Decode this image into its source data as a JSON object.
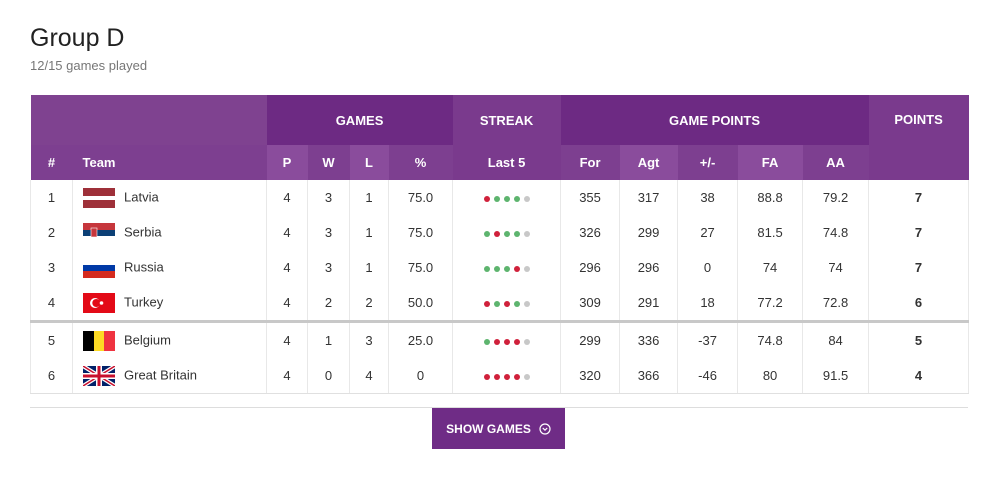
{
  "header": {
    "title": "Group D",
    "subtitle": "12/15 games played"
  },
  "table": {
    "group_headers": [
      "GAMES",
      "STREAK",
      "GAME POINTS",
      "POINTS"
    ],
    "columns": [
      "#",
      "Team",
      "P",
      "W",
      "L",
      "%",
      "Last 5",
      "For",
      "Agt",
      "+/-",
      "FA",
      "AA"
    ],
    "rows": [
      [
        1,
        "Latvia",
        4,
        3,
        1,
        "75.0",
        355,
        317,
        38,
        88.8,
        79.2,
        7
      ],
      [
        2,
        "Serbia",
        4,
        3,
        1,
        "75.0",
        326,
        299,
        27,
        81.5,
        74.8,
        7
      ],
      [
        3,
        "Russia",
        4,
        3,
        1,
        "75.0",
        296,
        296,
        0,
        74,
        74,
        7
      ],
      [
        4,
        "Turkey",
        4,
        2,
        2,
        "50.0",
        309,
        291,
        18,
        77.2,
        72.8,
        6
      ],
      [
        5,
        "Belgium",
        4,
        1,
        3,
        "25.0",
        299,
        336,
        -37,
        74.8,
        84,
        5
      ],
      [
        6,
        "Great Britain",
        4,
        0,
        4,
        0,
        320,
        366,
        -46,
        80,
        91.5,
        4
      ]
    ],
    "streak_colors": [
      [
        "#d0213b",
        "#5db46e",
        "#5db46e",
        "#5db46e",
        "#c8c8c8"
      ],
      [
        "#5db46e",
        "#d0213b",
        "#5db46e",
        "#5db46e",
        "#c8c8c8"
      ],
      [
        "#5db46e",
        "#5db46e",
        "#5db46e",
        "#d0213b",
        "#c8c8c8"
      ],
      [
        "#d0213b",
        "#5db46e",
        "#d0213b",
        "#5db46e",
        "#c8c8c8"
      ],
      [
        "#5db46e",
        "#d0213b",
        "#d0213b",
        "#d0213b",
        "#c8c8c8"
      ],
      [
        "#d0213b",
        "#d0213b",
        "#d0213b",
        "#d0213b",
        "#c8c8c8"
      ]
    ]
  },
  "button": {
    "label": "SHOW GAMES"
  }
}
